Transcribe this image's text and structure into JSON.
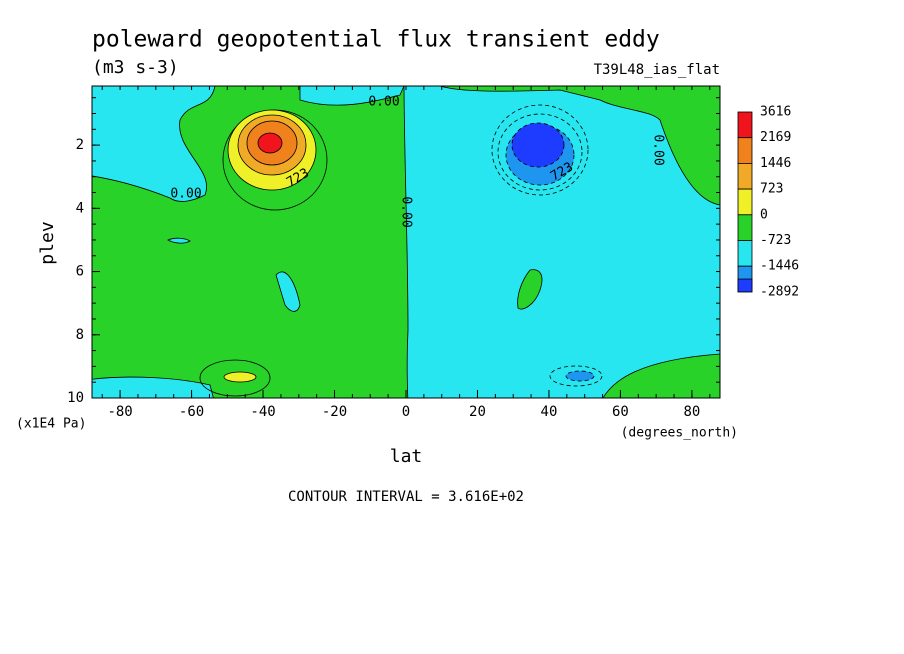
{
  "chart_data": {
    "type": "contour",
    "title": "poleward geopotential flux transient eddy",
    "subtitle": "(m3 s-3)",
    "run_label": "T39L48_ias_flat",
    "x_label": "lat",
    "y_label": "plev",
    "x_units": "(degrees_north)",
    "y_units": "(x1E4 Pa)",
    "footer": "CONTOUR INTERVAL = 3.616E+02",
    "xlim": [
      -87.86,
      87.86
    ],
    "ylim": [
      0.13,
      10
    ],
    "xticks": [
      -80,
      -60,
      -40,
      -20,
      0,
      20,
      40,
      60,
      80
    ],
    "yticks": [
      2,
      4,
      6,
      8,
      10
    ],
    "levels": [
      3616,
      2169,
      1446,
      723,
      0,
      -723,
      -1446,
      -2892
    ],
    "level_colors": [
      "#f0141c",
      "#f0821e",
      "#f0aa28",
      "#f0f028",
      "#28d228",
      "#28e6f0",
      "#1e96f0",
      "#1e3cff"
    ],
    "contour_labels": [
      "0.00",
      "0.00",
      "0.00",
      "0.00",
      "723",
      "723"
    ]
  }
}
